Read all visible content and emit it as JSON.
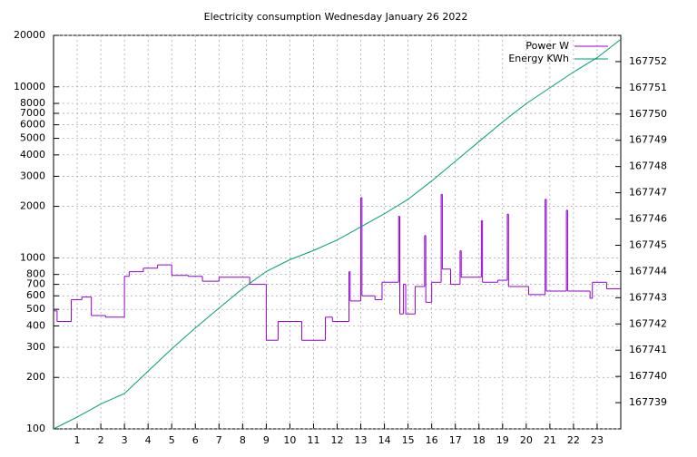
{
  "chart_data": {
    "type": "line",
    "title": "Electricity consumption Wednesday January 26 2022",
    "log_y": true,
    "grid": true,
    "legend": "top-right",
    "steps_series": 0,
    "xlim": [
      0,
      24
    ],
    "xticks": [
      1,
      2,
      3,
      4,
      5,
      6,
      7,
      8,
      9,
      10,
      11,
      12,
      13,
      14,
      15,
      16,
      17,
      18,
      19,
      20,
      21,
      22,
      23
    ],
    "ylim": [
      100,
      20000
    ],
    "yticks": [
      100,
      200,
      300,
      400,
      500,
      600,
      700,
      800,
      1000,
      2000,
      3000,
      4000,
      5000,
      6000,
      7000,
      8000,
      10000,
      20000
    ],
    "y2lim": [
      167738,
      167753
    ],
    "y2ticks": [
      167739,
      167740,
      167741,
      167742,
      167743,
      167744,
      167745,
      167746,
      167747,
      167748,
      167749,
      167750,
      167751,
      167752
    ],
    "series": [
      {
        "name": "Power W",
        "color": "#9400d3",
        "x": [
          0,
          0.15,
          0.75,
          1.2,
          1.6,
          2.2,
          3.0,
          3.2,
          3.8,
          4.4,
          5.0,
          5.7,
          6.3,
          7.0,
          8.3,
          9.0,
          9.5,
          10.5,
          11.5,
          11.8,
          12.5,
          12.55,
          13.0,
          13.05,
          13.6,
          13.9,
          14.6,
          14.65,
          14.8,
          14.9,
          15.3,
          15.7,
          15.75,
          16.0,
          16.4,
          16.45,
          16.8,
          17.2,
          17.25,
          18.1,
          18.15,
          18.8,
          19.2,
          19.25,
          20.1,
          20.8,
          20.85,
          21.7,
          21.75,
          22.7,
          22.8,
          23.4
        ],
        "values": [
          490,
          425,
          570,
          590,
          460,
          450,
          780,
          830,
          870,
          910,
          790,
          780,
          730,
          770,
          700,
          330,
          425,
          330,
          450,
          425,
          830,
          560,
          2250,
          600,
          570,
          720,
          1750,
          470,
          700,
          470,
          680,
          1350,
          550,
          720,
          2350,
          860,
          700,
          1100,
          770,
          1650,
          720,
          740,
          1800,
          680,
          610,
          2200,
          640,
          1900,
          640,
          580,
          720,
          660
        ]
      },
      {
        "name": "Energy KWh",
        "color": "#009e73",
        "axis": "y2",
        "x": [
          0,
          1,
          2,
          3,
          4,
          5,
          6,
          7,
          8,
          9,
          10,
          11,
          12,
          13,
          14,
          15,
          16,
          17,
          18,
          19,
          20,
          21,
          22,
          23,
          24
        ],
        "values": [
          167738.0,
          167738.45,
          167738.95,
          167739.35,
          167740.2,
          167741.05,
          167741.85,
          167742.6,
          167743.35,
          167744.0,
          167744.45,
          167744.8,
          167745.2,
          167745.7,
          167746.2,
          167746.75,
          167747.45,
          167748.2,
          167748.95,
          167749.7,
          167750.4,
          167751.0,
          167751.6,
          167752.15,
          167752.85
        ]
      }
    ]
  }
}
